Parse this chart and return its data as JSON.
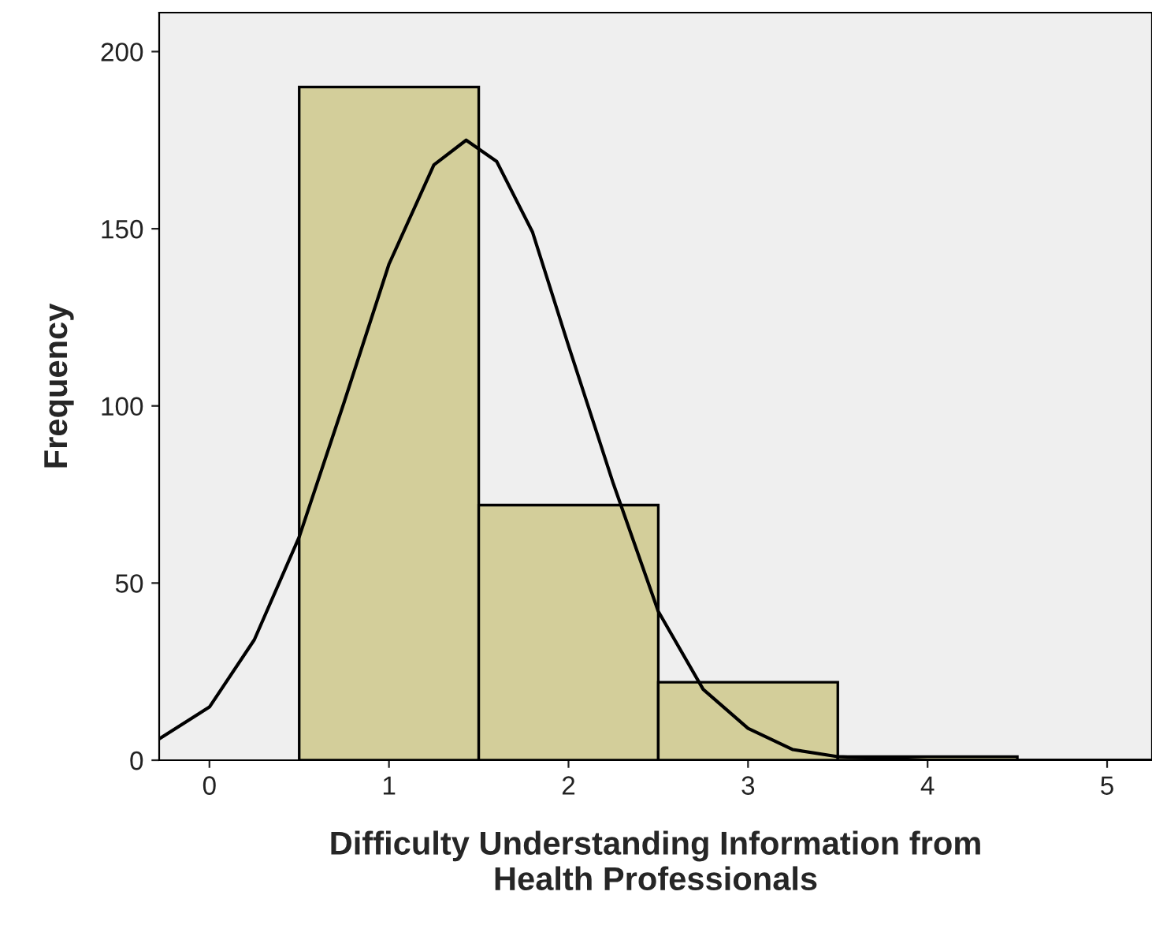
{
  "chart_data": {
    "type": "histogram",
    "xlabel": "Difficulty Understanding Information from\nHealth Professionals",
    "ylabel": "Frequency",
    "bins": [
      0.5,
      1.5,
      2.5,
      3.5,
      4.5
    ],
    "values": [
      190,
      72,
      22,
      1
    ],
    "color": "#d3ce9a",
    "series": [
      {
        "type": "line",
        "color": "#000000",
        "x": [
          -0.28,
          0,
          0.25,
          0.5,
          0.75,
          1.0,
          1.25,
          1.43,
          1.6,
          1.8,
          2.0,
          2.25,
          2.5,
          2.75,
          3.0,
          3.25,
          3.5,
          4.0,
          4.5,
          5.25
        ],
        "values": [
          6,
          15,
          34,
          63,
          101,
          140,
          168,
          175,
          169,
          149,
          117,
          78,
          42,
          20,
          9,
          3,
          1,
          0,
          0,
          0
        ]
      }
    ],
    "xlim": [
      -0.28,
      5.25
    ],
    "ylim": [
      0,
      211
    ],
    "xticks": [
      0,
      1,
      2,
      3,
      4,
      5
    ],
    "yticks": [
      0,
      50,
      100,
      150,
      200
    ],
    "grid": false,
    "legend": false
  }
}
